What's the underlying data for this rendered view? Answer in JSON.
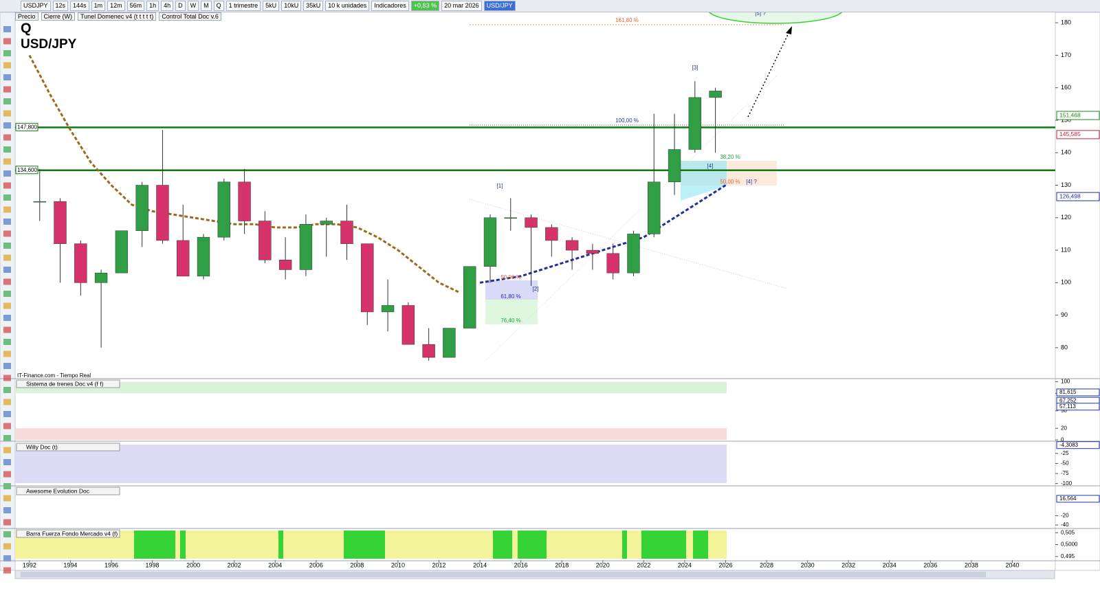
{
  "toolbar": {
    "symbol": "USDJPY",
    "timeframes": [
      "12s",
      "144s",
      "1m",
      "12m",
      "56m",
      "1h",
      "4h",
      "D",
      "W",
      "M",
      "Q"
    ],
    "period": "1 trimestre",
    "units": [
      "5kU",
      "10kU",
      "35kU"
    ],
    "unit_select": "10 k unidades",
    "indicators": "Indicadores",
    "change": "+0,83 %",
    "date": "20 mar 2026",
    "pair": "USD/JPY"
  },
  "legend": [
    "Precio",
    "Cierre (W)",
    "Tunel Domenec v4 (t t t t t)",
    "Control Total Doc v.6"
  ],
  "chart_data": {
    "type": "candlestick",
    "title": "Q",
    "subtitle": "USD/JPY",
    "source": "IT-Finance.com - Tiempo Real",
    "x": [
      1992,
      1993,
      1994,
      1995,
      1996,
      1997,
      1998,
      1999,
      2000,
      2001,
      2002,
      2003,
      2004,
      2005,
      2006,
      2007,
      2008,
      2009,
      2010,
      2011,
      2012,
      2013,
      2014,
      2015,
      2016,
      2017,
      2018,
      2019,
      2020,
      2021,
      2022,
      2023,
      2024,
      2025
    ],
    "open": [
      125,
      125,
      112,
      100,
      103,
      116,
      130,
      113,
      102,
      114,
      131,
      119,
      107,
      104,
      118,
      119,
      112,
      91,
      93,
      81,
      77,
      86,
      105,
      120,
      120,
      117,
      113,
      110,
      109,
      103,
      115,
      131,
      141,
      157
    ],
    "high": [
      135,
      126,
      113,
      104,
      116,
      131,
      147,
      124,
      115,
      132,
      135,
      122,
      114,
      121,
      120,
      124,
      112,
      101,
      94,
      86,
      86,
      105,
      121,
      126,
      121,
      118,
      114,
      112,
      112,
      116,
      152,
      152,
      162,
      160
    ],
    "low": [
      119,
      100,
      96,
      80,
      104,
      111,
      112,
      102,
      101,
      113,
      115,
      106,
      101,
      102,
      108,
      107,
      87,
      85,
      81,
      76,
      77,
      86,
      100,
      116,
      99,
      108,
      104,
      104,
      101,
      102,
      114,
      127,
      140,
      140
    ],
    "close": [
      125,
      112,
      100,
      103,
      116,
      130,
      113,
      102,
      114,
      131,
      119,
      107,
      104,
      118,
      119,
      112,
      91,
      93,
      81,
      77,
      86,
      105,
      120,
      120,
      117,
      113,
      110,
      109,
      103,
      115,
      131,
      141,
      157,
      159
    ],
    "up_color": "#2f9e44",
    "down_color": "#d6336c",
    "series": [
      {
        "color": "#9c6a1c",
        "x": [
          1992,
          1993,
          1994,
          1995,
          1996,
          1997,
          1998,
          1999,
          2000,
          2001,
          2002,
          2003,
          2004,
          2005,
          2006,
          2007,
          2008,
          2009,
          2010,
          2011,
          2012,
          2013
        ],
        "values": [
          170,
          158,
          147,
          137,
          130,
          124,
          122,
          121,
          120,
          119,
          118,
          118,
          117,
          117,
          118,
          118,
          117,
          114,
          110,
          105,
          100,
          97
        ]
      },
      {
        "color": "#1f2f9c",
        "x": [
          2014,
          2016,
          2018,
          2020,
          2022,
          2024,
          2026
        ],
        "values": [
          100,
          102,
          106,
          110,
          114,
          122,
          130
        ]
      }
    ],
    "levels": [
      {
        "value": 147.8,
        "label": "147,800",
        "color": "#0f7a0f"
      },
      {
        "value": 134.6,
        "label": "134,600",
        "color": "#0f7a0f"
      }
    ],
    "price_labels": [
      {
        "value": 151.468,
        "label": "151,468",
        "color": "#1a8a1a"
      },
      {
        "value": 145.585,
        "label": "145,585",
        "color": "#c0203a"
      },
      {
        "value": 126.498,
        "label": "126,498",
        "color": "#1f2f9c"
      }
    ],
    "annotations": [
      "161,80 %",
      "100,00 %",
      "38,20 %",
      "50,00 %",
      "[4] ?",
      "[4]",
      "[3]",
      "[1]",
      "[2]",
      "[5] ?",
      "50,00 %",
      "61,80 %",
      "76,40 %"
    ],
    "xlim": [
      1991.3,
      2042.1
    ],
    "xticks": [
      1992,
      1994,
      1996,
      1998,
      2000,
      2002,
      2004,
      2006,
      2008,
      2010,
      2012,
      2014,
      2016,
      2018,
      2020,
      2022,
      2024,
      2026,
      2028,
      2030,
      2032,
      2034,
      2036,
      2038,
      2040
    ],
    "ylim": [
      71.1,
      183.2
    ],
    "yticks": [
      80,
      90,
      100,
      110,
      120,
      130,
      140,
      150,
      160,
      170,
      180
    ]
  },
  "panels": [
    {
      "title": "Sistema de trenes Doc v4 (f f)",
      "ylim": [
        -1,
        104
      ],
      "yticks": [
        100,
        80,
        50,
        20,
        0
      ],
      "markers": [
        {
          "value": 81.615,
          "label": "81,615"
        },
        {
          "value": 67.252,
          "label": "67,252"
        },
        {
          "value": 57.113,
          "label": "57,113"
        }
      ]
    },
    {
      "title": "Willy Doc (t)",
      "ylim": [
        -104,
        2
      ],
      "yticks": [
        -25,
        -50,
        -75,
        -100
      ],
      "markers": [
        {
          "value": -4.3083,
          "label": "-4,3083"
        }
      ]
    },
    {
      "title": "Awesome Evolution Doc",
      "ylim": [
        -46,
        43
      ],
      "yticks": [
        -20,
        -40
      ],
      "markers": [
        {
          "value": 16.564,
          "label": "16,564"
        }
      ]
    },
    {
      "title": "Barra Fuerza Fondo Mercado v4 (f)",
      "ylim": [
        0.4935,
        0.5065
      ],
      "yticks": [
        {
          "value": 0.505,
          "label": "0,505"
        },
        {
          "value": 0.5,
          "label": "0,5000"
        },
        {
          "value": 0.495,
          "label": "0,495"
        }
      ],
      "markers": []
    }
  ]
}
